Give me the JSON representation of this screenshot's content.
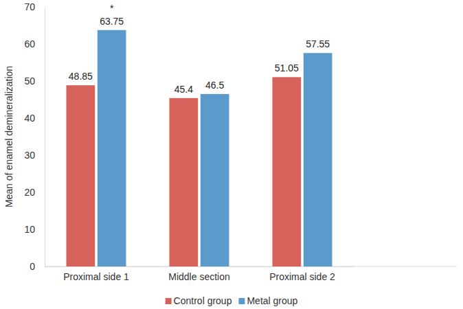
{
  "chart_data": {
    "type": "bar",
    "y_label": "Mean of enamel demineralization",
    "categories": [
      "Proximal side 1",
      "Middle section",
      "Proximal side 2"
    ],
    "series": [
      {
        "name": "Control group",
        "color": "#d6625b",
        "values": [
          48.85,
          45.4,
          51.05
        ]
      },
      {
        "name": "Metal group",
        "color": "#5b9bcb",
        "values": [
          63.75,
          46.5,
          57.55
        ]
      }
    ],
    "ylim": [
      0,
      70
    ],
    "yticks": [
      0,
      10,
      20,
      30,
      40,
      50,
      60,
      70
    ],
    "grid": false,
    "legend": "bottom",
    "data_labels": true,
    "annotations": [
      {
        "text": "*",
        "category": 0,
        "series": 1
      }
    ]
  }
}
